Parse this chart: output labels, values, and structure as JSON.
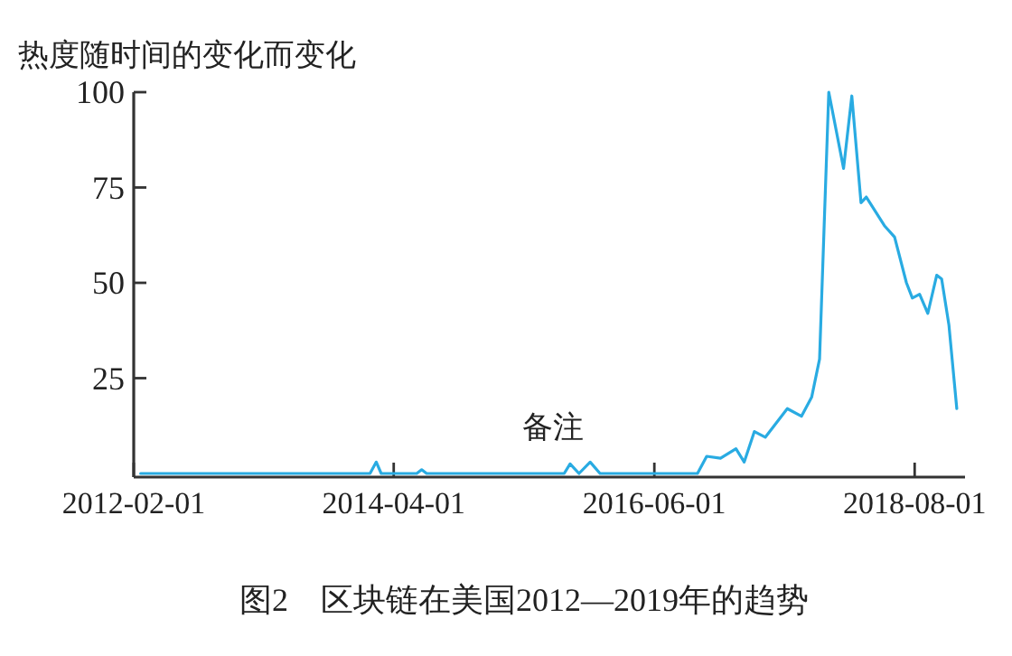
{
  "chart_data": {
    "type": "line",
    "ylabel": "热度随时间的变化而变化",
    "title": "图2　区块链在美国2012—2019年的趋势",
    "annotations": [
      "备注"
    ],
    "xlim": [
      "2012-02-01",
      "2019-01-01"
    ],
    "xticks": [
      {
        "value": "2012-02-01",
        "label": "2012-02-01"
      },
      {
        "value": "2014-04-01",
        "label": "2014-04-01"
      },
      {
        "value": "2016-06-01",
        "label": "2016-06-01"
      },
      {
        "value": "2018-08-01",
        "label": "2018-08-01"
      }
    ],
    "ylim": [
      0,
      100
    ],
    "yticks": [
      25,
      50,
      75,
      100
    ],
    "grid": false,
    "series": [
      {
        "color": "#29abe2",
        "x": [
          "2012-02-22",
          "2014-01-19",
          "2014-02-07",
          "2014-02-22",
          "2014-06-10",
          "2014-06-25",
          "2014-07-10",
          "2015-09-01",
          "2015-09-19",
          "2015-10-16",
          "2015-11-19",
          "2015-12-19",
          "2016-10-10",
          "2016-11-07",
          "2016-12-19",
          "2017-02-04",
          "2017-03-01",
          "2017-04-01",
          "2017-05-04",
          "2017-07-10",
          "2017-08-22",
          "2017-09-22",
          "2017-10-16",
          "2017-11-13",
          "2017-12-28",
          "2018-01-22",
          "2018-02-19",
          "2018-03-07",
          "2018-05-01",
          "2018-06-01",
          "2018-07-07",
          "2018-07-25",
          "2018-08-16",
          "2018-09-10",
          "2018-10-07",
          "2018-10-22",
          "2018-11-13",
          "2018-12-07"
        ],
        "values": [
          0,
          0,
          3,
          0,
          0,
          1,
          0,
          0,
          2.5,
          0,
          3,
          0,
          0,
          4.5,
          4,
          6.5,
          3,
          11,
          9.5,
          17,
          15,
          20,
          30,
          100,
          80,
          99,
          71,
          72.5,
          65,
          62,
          50,
          46,
          47,
          42,
          52,
          51,
          39,
          17
        ]
      }
    ]
  }
}
